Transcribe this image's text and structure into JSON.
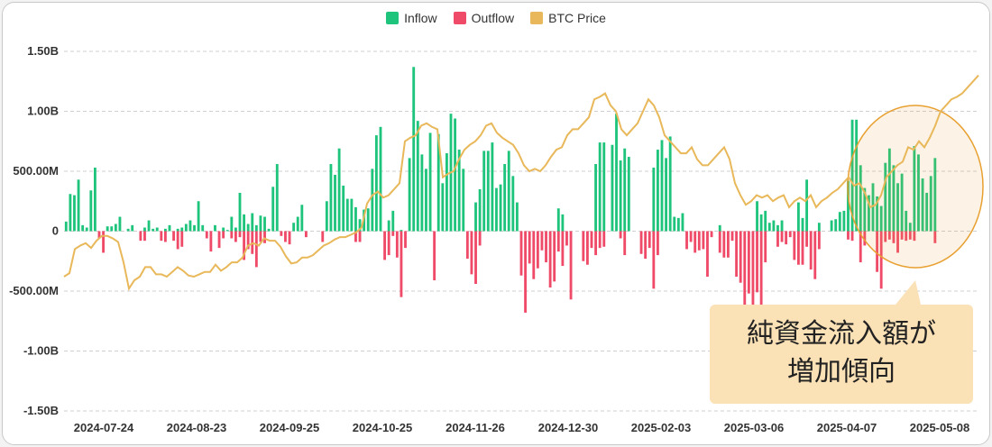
{
  "legend": [
    {
      "label": "Inflow",
      "color": "#1fc47c"
    },
    {
      "label": "Outflow",
      "color": "#ef4a68"
    },
    {
      "label": "BTC Price",
      "color": "#e8b85a"
    }
  ],
  "annotation": {
    "line1": "純資金流入額が",
    "line2": "増加傾向",
    "background": "#fbe1b6",
    "highlight_color": "#e8a030"
  },
  "chart_data": {
    "type": "bar",
    "ylim": [
      -1.5,
      1.5
    ],
    "y_unit": "B",
    "y_ticks": [
      "1.50B",
      "1.00B",
      "500.00M",
      "0",
      "-500.00M",
      "-1.00B",
      "-1.50B"
    ],
    "x_tick_labels": [
      "2024-07-24",
      "2024-08-23",
      "2024-09-25",
      "2024-10-25",
      "2024-11-26",
      "2024-12-30",
      "2025-02-03",
      "2025-03-06",
      "2025-04-07",
      "2025-05-08"
    ],
    "grid": true,
    "legend_position": "top-center",
    "series": [
      {
        "name": "Inflow",
        "color": "#1fc47c",
        "values": [
          0.08,
          0.31,
          0.3,
          0.43,
          0.05,
          0.03,
          0.34,
          0.53,
          0,
          0,
          0.04,
          0.04,
          0.06,
          0.12,
          0,
          0.02,
          0.05,
          0,
          0,
          0.03,
          0.09,
          0.02,
          0.03,
          0,
          0.02,
          0.05,
          0,
          0.02,
          0.03,
          0.06,
          0.09,
          0.05,
          0.25,
          0.05,
          0,
          0,
          0.05,
          0,
          0.03,
          0.01,
          0.12,
          0.03,
          0.32,
          0.14,
          0.06,
          0.15,
          0.05,
          0.13,
          0.12,
          0.02,
          0.37,
          0.56,
          0,
          0,
          0,
          0.07,
          0.12,
          0.22,
          0,
          0,
          0,
          0,
          0,
          0.25,
          0.56,
          0.47,
          0.69,
          0.38,
          0.27,
          0.27,
          0.2,
          0.1,
          0.18,
          0.19,
          0.52,
          0.8,
          0.87,
          0,
          0.09,
          0.17,
          0,
          0.01,
          0,
          0.61,
          1.37,
          0.92,
          0.64,
          0.52,
          0.82,
          0,
          0.81,
          0.4,
          0.65,
          0.98,
          0.94,
          0.68,
          0.52,
          0,
          0,
          0.24,
          0.35,
          0.67,
          0.67,
          0.74,
          0.36,
          0.39,
          0.56,
          0.67,
          0.46,
          0.24,
          0,
          0,
          0,
          0,
          0,
          0,
          0,
          0,
          0,
          0.19,
          0.14,
          0,
          0,
          0,
          0,
          0,
          0,
          0,
          0.56,
          0.74,
          0.74,
          0,
          0.72,
          0.98,
          0.59,
          0.69,
          0.62,
          0,
          0,
          0,
          0,
          0,
          0.53,
          0.68,
          0.76,
          0.61,
          0.79,
          0.12,
          0.11,
          0.15,
          0,
          0,
          0,
          0,
          0,
          0,
          0,
          0,
          0.05,
          0,
          0,
          0,
          0,
          0,
          0,
          0,
          0,
          0.25,
          0.14,
          0.17,
          0.07,
          0.09,
          0.05,
          0.09,
          0,
          0,
          0,
          0.24,
          0.11,
          0.43,
          0,
          0,
          0.07,
          0,
          0,
          0.09,
          0.1,
          0.16,
          0.17,
          0.42,
          0.93,
          0.93,
          0.55,
          0.36,
          0.3,
          0.4,
          0.29,
          0.21,
          0.57,
          0.69,
          0.55,
          0.4,
          0.48,
          0.17,
          0.07,
          0.71,
          0.64,
          0.44,
          0.32,
          0.46,
          0.61,
          0,
          0,
          0,
          0,
          0,
          0,
          0,
          0,
          0,
          0
        ]
      },
      {
        "name": "Outflow",
        "color": "#ef4a68",
        "values": [
          0,
          0,
          0,
          0,
          0,
          0,
          0,
          0,
          -0.06,
          -0.18,
          0,
          0,
          0,
          0,
          0,
          0,
          0,
          0,
          -0.08,
          -0.08,
          0,
          0,
          0,
          -0.08,
          -0.09,
          0,
          -0.08,
          -0.15,
          -0.13,
          0,
          0,
          0,
          0,
          0,
          -0.06,
          -0.17,
          0,
          -0.14,
          -0.06,
          0,
          -0.06,
          -0.09,
          -0.05,
          -0.24,
          -0.15,
          -0.19,
          -0.3,
          -0.09,
          -0.1,
          0,
          0,
          0,
          -0.04,
          -0.09,
          -0.11,
          0,
          0,
          0,
          -0.05,
          0,
          0,
          0,
          -0.09,
          0,
          0,
          0,
          0,
          0,
          0,
          0,
          -0.09,
          -0.09,
          0,
          0,
          0,
          0,
          0,
          -0.24,
          -0.2,
          -0.04,
          -0.22,
          -0.55,
          -0.14,
          0,
          0,
          0,
          0,
          0,
          0,
          -0.41,
          0,
          0,
          0,
          0,
          0,
          0,
          0,
          -0.23,
          -0.36,
          -0.44,
          -0.12,
          0,
          0,
          0,
          0,
          0,
          0,
          0,
          0,
          0,
          -0.37,
          -0.68,
          -0.27,
          -0.4,
          -0.31,
          -0.16,
          -0.26,
          -0.47,
          -0.42,
          -0.17,
          -0.29,
          -0.12,
          -0.57,
          0,
          0,
          -0.25,
          -0.28,
          -0.14,
          -0.2,
          -0.14,
          -0.13,
          0,
          0,
          0,
          -0.06,
          -0.2,
          0,
          0,
          0,
          -0.19,
          -0.23,
          -0.14,
          -0.48,
          -0.2,
          0,
          0,
          0,
          0,
          0,
          0,
          -0.15,
          -0.09,
          -0.18,
          -0.16,
          -0.15,
          -0.38,
          -0.05,
          0,
          -0.18,
          -0.22,
          -0.22,
          -0.08,
          -0.38,
          -0.43,
          -0.62,
          -0.52,
          -0.71,
          -0.51,
          -0.62,
          -0.26,
          0,
          0,
          -0.13,
          -0.09,
          -0.11,
          -0.05,
          -0.24,
          -0.28,
          -0.28,
          -0.13,
          -0.32,
          -0.4,
          -0.15,
          0,
          0,
          0,
          0,
          0,
          0,
          -0.07,
          -0.08,
          0,
          -0.26,
          -0.12,
          0,
          0,
          -0.34,
          -0.48,
          -0.09,
          -0.07,
          -0.1,
          -0.18,
          -0.07,
          -0.08,
          -0.07,
          -0.08,
          0,
          0,
          0,
          0,
          -0.1,
          0,
          0,
          0,
          0,
          0,
          0,
          0,
          0,
          0,
          0,
          0,
          0,
          0,
          0,
          0,
          0,
          0,
          0,
          0,
          0,
          0,
          0,
          0,
          0
        ]
      },
      {
        "name": "BTC Price",
        "color": "#e8b85a",
        "values": [
          -0.38,
          -0.35,
          -0.15,
          -0.12,
          -0.1,
          -0.14,
          -0.08,
          -0.04,
          -0.04,
          -0.06,
          -0.09,
          -0.26,
          -0.48,
          -0.41,
          -0.38,
          -0.3,
          -0.3,
          -0.36,
          -0.36,
          -0.38,
          -0.34,
          -0.3,
          -0.33,
          -0.37,
          -0.38,
          -0.36,
          -0.34,
          -0.34,
          -0.28,
          -0.33,
          -0.3,
          -0.26,
          -0.26,
          -0.22,
          -0.12,
          -0.1,
          -0.12,
          -0.06,
          -0.08,
          -0.08,
          -0.13,
          -0.21,
          -0.27,
          -0.26,
          -0.22,
          -0.22,
          -0.2,
          -0.16,
          -0.12,
          -0.1,
          -0.07,
          -0.05,
          -0.05,
          -0.03,
          -0.01,
          0.03,
          0.23,
          0.3,
          0.33,
          0.28,
          0.3,
          0.35,
          0.4,
          0.75,
          0.78,
          0.8,
          0.88,
          0.9,
          0.87,
          0.85,
          0.45,
          0.48,
          0.5,
          0.6,
          0.68,
          0.72,
          0.75,
          0.8,
          0.88,
          0.9,
          0.82,
          0.78,
          0.75,
          0.72,
          0.65,
          0.55,
          0.5,
          0.52,
          0.5,
          0.55,
          0.62,
          0.68,
          0.7,
          0.8,
          0.85,
          0.85,
          0.9,
          0.95,
          1.1,
          1.12,
          1.15,
          1.05,
          1.0,
          0.85,
          0.8,
          0.85,
          0.9,
          1.0,
          1.1,
          1.05,
          0.95,
          0.8,
          0.75,
          0.7,
          0.65,
          0.65,
          0.7,
          0.6,
          0.55,
          0.55,
          0.6,
          0.65,
          0.7,
          0.6,
          0.4,
          0.3,
          0.22,
          0.25,
          0.3,
          0.28,
          0.3,
          0.25,
          0.28,
          0.3,
          0.2,
          0.25,
          0.28,
          0.25,
          0.3,
          0.2,
          0.25,
          0.28,
          0.32,
          0.35,
          0.4,
          0.45,
          0.38,
          0.4,
          0.32,
          0.2,
          0.22,
          0.3,
          0.45,
          0.5,
          0.55,
          0.58,
          0.7,
          0.68,
          0.75,
          0.7,
          0.78,
          0.88,
          1.0,
          1.05,
          1.1,
          1.12,
          1.15,
          1.2,
          1.25,
          1.3
        ]
      }
    ]
  }
}
